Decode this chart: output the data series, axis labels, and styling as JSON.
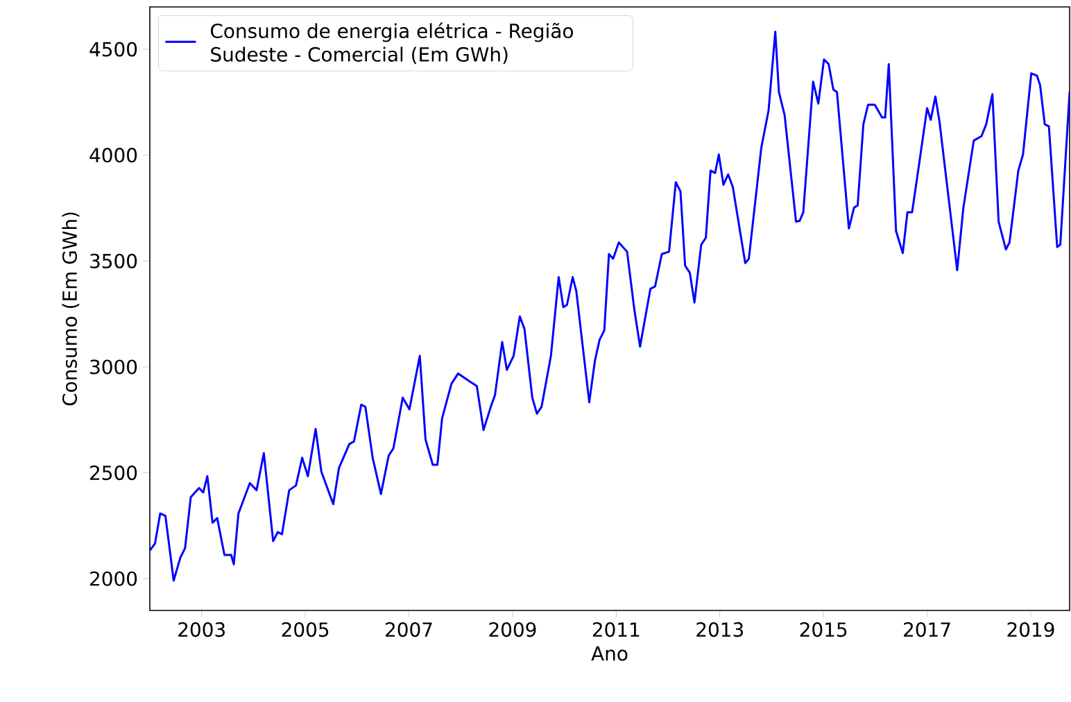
{
  "chart_data": {
    "type": "line",
    "xlabel": "Ano",
    "ylabel": "Consumo (Em GWh)",
    "xlim": [
      2002.0,
      2019.75
    ],
    "ylim": [
      1850,
      4700
    ],
    "xticks": [
      2003,
      2005,
      2007,
      2009,
      2011,
      2013,
      2015,
      2017,
      2019
    ],
    "yticks": [
      2000,
      2500,
      3000,
      3500,
      4000,
      4500
    ],
    "legend": "top left",
    "series": [
      {
        "name": "Consumo de energia elétrica - Região Sudeste - Comercial (Em GWh)",
        "color": "#0000ff",
        "x": [
          2002.0,
          2002.1,
          2002.2,
          2002.3,
          2002.46,
          2002.59,
          2002.68,
          2002.79,
          2002.95,
          2003.03,
          2003.11,
          2003.21,
          2003.3,
          2003.44,
          2003.57,
          2003.62,
          2003.71,
          2003.93,
          2004.06,
          2004.2,
          2004.38,
          2004.47,
          2004.55,
          2004.69,
          2004.82,
          2004.94,
          2005.05,
          2005.2,
          2005.31,
          2005.54,
          2005.65,
          2005.85,
          2005.94,
          2006.08,
          2006.16,
          2006.3,
          2006.46,
          2006.61,
          2006.7,
          2006.88,
          2007.01,
          2007.21,
          2007.32,
          2007.46,
          2007.55,
          2007.64,
          2007.82,
          2007.95,
          2008.17,
          2008.31,
          2008.44,
          2008.58,
          2008.66,
          2008.8,
          2008.89,
          2009.02,
          2009.14,
          2009.23,
          2009.38,
          2009.47,
          2009.56,
          2009.74,
          2009.89,
          2009.98,
          2010.05,
          2010.16,
          2010.23,
          2010.48,
          2010.59,
          2010.68,
          2010.77,
          2010.86,
          2010.94,
          2011.05,
          2011.21,
          2011.35,
          2011.46,
          2011.66,
          2011.75,
          2011.88,
          2012.02,
          2012.15,
          2012.24,
          2012.33,
          2012.42,
          2012.51,
          2012.64,
          2012.73,
          2012.82,
          2012.91,
          2012.98,
          2013.07,
          2013.16,
          2013.25,
          2013.49,
          2013.56,
          2013.8,
          2013.94,
          2014.07,
          2014.14,
          2014.25,
          2014.47,
          2014.54,
          2014.61,
          2014.8,
          2014.9,
          2015.01,
          2015.1,
          2015.19,
          2015.26,
          2015.49,
          2015.59,
          2015.66,
          2015.77,
          2015.86,
          2015.99,
          2016.13,
          2016.19,
          2016.26,
          2016.4,
          2016.53,
          2016.62,
          2016.71,
          2016.84,
          2017.0,
          2017.07,
          2017.16,
          2017.24,
          2017.58,
          2017.7,
          2017.9,
          2018.05,
          2018.14,
          2018.26,
          2018.38,
          2018.52,
          2018.59,
          2018.76,
          2018.85,
          2019.01,
          2019.12,
          2019.18,
          2019.27,
          2019.35,
          2019.51,
          2019.57,
          2019.75
        ],
        "values": [
          2133,
          2166,
          2308,
          2297,
          1991,
          2100,
          2144,
          2385,
          2428,
          2407,
          2484,
          2264,
          2286,
          2112,
          2112,
          2068,
          2308,
          2451,
          2418,
          2593,
          2177,
          2220,
          2210,
          2418,
          2440,
          2571,
          2484,
          2707,
          2505,
          2352,
          2523,
          2636,
          2648,
          2822,
          2811,
          2571,
          2400,
          2582,
          2615,
          2855,
          2800,
          3052,
          2658,
          2538,
          2538,
          2757,
          2920,
          2969,
          2932,
          2910,
          2702,
          2812,
          2866,
          3118,
          2986,
          3052,
          3238,
          3179,
          2855,
          2779,
          2812,
          3052,
          3424,
          3282,
          3293,
          3424,
          3358,
          2833,
          3030,
          3129,
          3172,
          3533,
          3511,
          3588,
          3544,
          3271,
          3096,
          3369,
          3380,
          3533,
          3544,
          3872,
          3829,
          3478,
          3445,
          3304,
          3577,
          3610,
          3927,
          3916,
          4003,
          3860,
          3909,
          3850,
          3490,
          3511,
          4035,
          4211,
          4583,
          4298,
          4189,
          3686,
          3690,
          3730,
          4347,
          4244,
          4452,
          4430,
          4310,
          4298,
          3654,
          3752,
          3763,
          4146,
          4238,
          4238,
          4178,
          4178,
          4430,
          3642,
          3538,
          3730,
          3730,
          3949,
          4222,
          4167,
          4277,
          4156,
          3457,
          3752,
          4069,
          4090,
          4146,
          4288,
          3686,
          3555,
          3588,
          3927,
          4003,
          4386,
          4375,
          4331,
          4146,
          4136,
          3566,
          3577,
          4298
        ]
      }
    ]
  }
}
